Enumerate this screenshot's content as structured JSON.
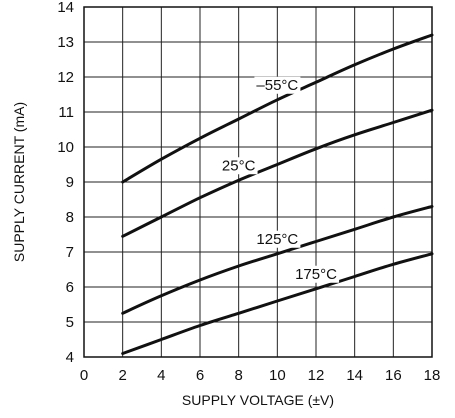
{
  "chart_data": {
    "type": "line",
    "title": "",
    "xlabel": "SUPPLY VOLTAGE (±V)",
    "ylabel": "SUPPLY CURRENT (mA)",
    "xlim": [
      0,
      18
    ],
    "ylim": [
      4,
      14
    ],
    "x_ticks": [
      0,
      2,
      4,
      6,
      8,
      10,
      12,
      14,
      16,
      18
    ],
    "y_ticks": [
      4,
      5,
      6,
      7,
      8,
      9,
      10,
      11,
      12,
      13,
      14
    ],
    "grid": true,
    "series": [
      {
        "name": "–55°C",
        "x": [
          2,
          4,
          6,
          8,
          10,
          12,
          14,
          16,
          18
        ],
        "y": [
          9.0,
          9.65,
          10.25,
          10.8,
          11.35,
          11.85,
          12.35,
          12.8,
          13.2
        ]
      },
      {
        "name": "25°C",
        "x": [
          2,
          4,
          6,
          8,
          10,
          12,
          14,
          16,
          18
        ],
        "y": [
          7.45,
          8.0,
          8.55,
          9.05,
          9.5,
          9.95,
          10.35,
          10.7,
          11.05
        ]
      },
      {
        "name": "125°C",
        "x": [
          2,
          4,
          6,
          8,
          10,
          12,
          14,
          16,
          18
        ],
        "y": [
          5.25,
          5.75,
          6.2,
          6.6,
          6.95,
          7.3,
          7.65,
          8.0,
          8.3
        ]
      },
      {
        "name": "175°C",
        "x": [
          2,
          4,
          6,
          8,
          10,
          12,
          14,
          16,
          18
        ],
        "y": [
          4.1,
          4.5,
          4.9,
          5.25,
          5.6,
          5.95,
          6.3,
          6.65,
          6.95
        ]
      }
    ]
  }
}
